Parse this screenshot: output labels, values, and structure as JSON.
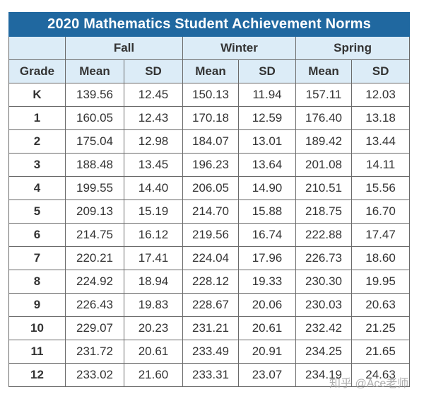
{
  "title": "2020 Mathematics Student Achievement Norms",
  "groups": [
    "Fall",
    "Winter",
    "Spring"
  ],
  "columns": [
    "Grade",
    "Mean",
    "SD",
    "Mean",
    "SD",
    "Mean",
    "SD"
  ],
  "rows": [
    [
      "K",
      "139.56",
      "12.45",
      "150.13",
      "11.94",
      "157.11",
      "12.03"
    ],
    [
      "1",
      "160.05",
      "12.43",
      "170.18",
      "12.59",
      "176.40",
      "13.18"
    ],
    [
      "2",
      "175.04",
      "12.98",
      "184.07",
      "13.01",
      "189.42",
      "13.44"
    ],
    [
      "3",
      "188.48",
      "13.45",
      "196.23",
      "13.64",
      "201.08",
      "14.11"
    ],
    [
      "4",
      "199.55",
      "14.40",
      "206.05",
      "14.90",
      "210.51",
      "15.56"
    ],
    [
      "5",
      "209.13",
      "15.19",
      "214.70",
      "15.88",
      "218.75",
      "16.70"
    ],
    [
      "6",
      "214.75",
      "16.12",
      "219.56",
      "16.74",
      "222.88",
      "17.47"
    ],
    [
      "7",
      "220.21",
      "17.41",
      "224.04",
      "17.96",
      "226.73",
      "18.60"
    ],
    [
      "8",
      "224.92",
      "18.94",
      "228.12",
      "19.33",
      "230.30",
      "19.95"
    ],
    [
      "9",
      "226.43",
      "19.83",
      "228.67",
      "20.06",
      "230.03",
      "20.63"
    ],
    [
      "10",
      "229.07",
      "20.23",
      "231.21",
      "20.61",
      "232.42",
      "21.25"
    ],
    [
      "11",
      "231.72",
      "20.61",
      "233.49",
      "20.91",
      "234.25",
      "21.65"
    ],
    [
      "12",
      "233.02",
      "21.60",
      "233.31",
      "23.07",
      "234.19",
      "24.63"
    ]
  ],
  "watermark": "知乎 @Ace老师"
}
